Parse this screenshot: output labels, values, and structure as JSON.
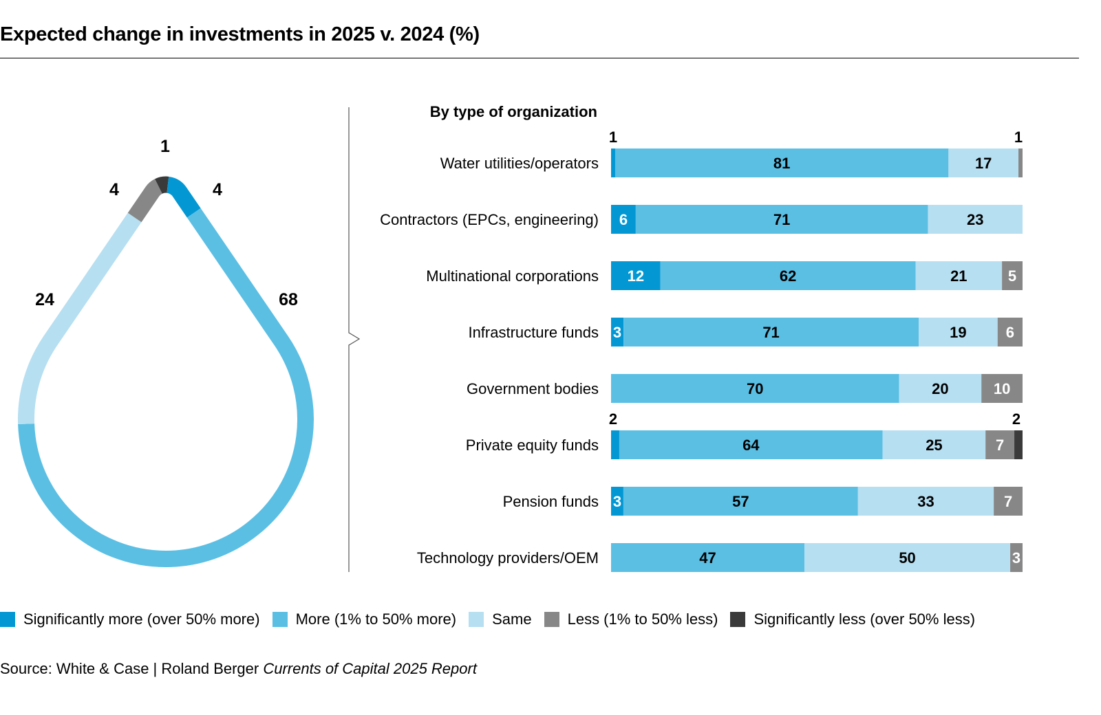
{
  "title": "Expected change in investments in 2025 v. 2024 (%)",
  "source": {
    "prefix": "Source: White & Case | Roland Berger ",
    "report": "Currents of Capital 2025 Report"
  },
  "colors": {
    "significantly_more": "#0398D4",
    "more": "#5BBFE4",
    "same": "#B6DFF1",
    "less": "#878787",
    "significantly_less": "#3A3A3A"
  },
  "chart_data": [
    {
      "type": "pie",
      "subtype": "water-drop ring",
      "title": "Overall",
      "categories": [
        "Significantly more (over 50% more)",
        "More (1% to 50% more)",
        "Same",
        "Less (1% to 50% less)",
        "Significantly less (over 50% less)"
      ],
      "values": [
        4,
        68,
        24,
        4,
        1
      ],
      "labels": [
        "4",
        "68",
        "24",
        "4",
        "1"
      ]
    },
    {
      "type": "bar",
      "orientation": "horizontal",
      "stacked": true,
      "title": "By type of organization",
      "xlim": [
        0,
        100
      ],
      "categories": [
        "Water utilities/operators",
        "Contractors (EPCs, engineering)",
        "Multinational corporations",
        "Infrastructure funds",
        "Government bodies",
        "Private equity funds",
        "Pension funds",
        "Technology providers/OEM"
      ],
      "series": [
        {
          "name": "Significantly more (over 50% more)",
          "key": "significantly_more",
          "values": [
            1,
            6,
            12,
            3,
            0,
            2,
            3,
            0
          ]
        },
        {
          "name": "More (1% to 50% more)",
          "key": "more",
          "values": [
            81,
            71,
            62,
            71,
            70,
            64,
            57,
            47
          ]
        },
        {
          "name": "Same",
          "key": "same",
          "values": [
            17,
            23,
            21,
            19,
            20,
            25,
            33,
            50
          ]
        },
        {
          "name": "Less (1% to 50% less)",
          "key": "less",
          "values": [
            1,
            0,
            5,
            6,
            10,
            7,
            7,
            3
          ]
        },
        {
          "name": "Significantly less (over 50% less)",
          "key": "significantly_less",
          "values": [
            0,
            0,
            0,
            0,
            0,
            2,
            0,
            0
          ]
        }
      ]
    }
  ],
  "legend": [
    {
      "label": "Significantly more (over 50% more)",
      "key": "significantly_more"
    },
    {
      "label": "More (1% to 50% more)",
      "key": "more"
    },
    {
      "label": "Same",
      "key": "same"
    },
    {
      "label": "Less (1% to 50% less)",
      "key": "less"
    },
    {
      "label": "Significantly less (over 50% less)",
      "key": "significantly_less"
    }
  ]
}
